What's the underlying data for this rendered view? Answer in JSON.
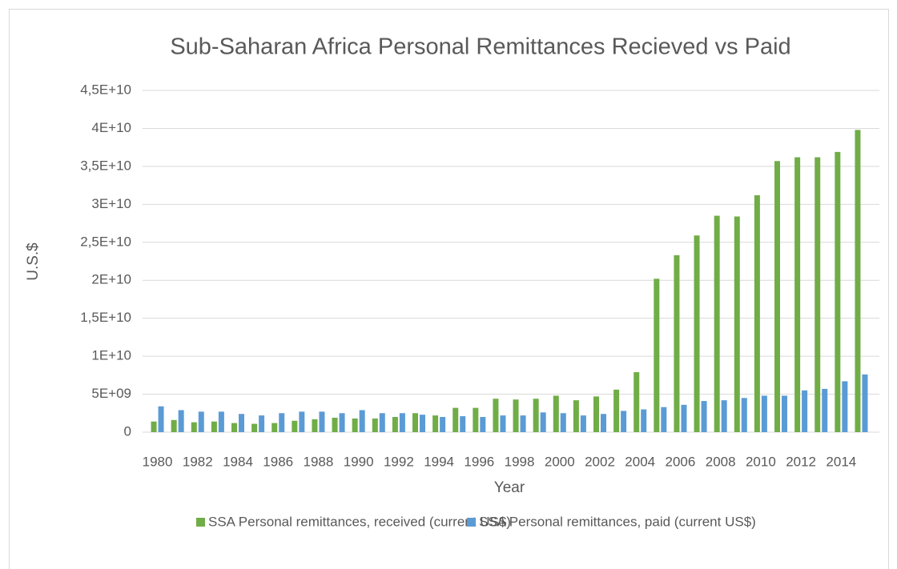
{
  "chart_data": {
    "type": "bar",
    "title": "Sub-Saharan Africa Personal Remittances Recieved vs Paid",
    "x_label": "Year",
    "y_label": "U.S.$",
    "categories": [
      "1980",
      null,
      "1982",
      null,
      "1984",
      null,
      "1986",
      null,
      "1988",
      null,
      "1990",
      null,
      "1992",
      null,
      "1994",
      null,
      "1996",
      null,
      "1998",
      null,
      "2000",
      null,
      "2002",
      null,
      "2004",
      null,
      "2006",
      null,
      "2008",
      null,
      "2010",
      null,
      "2012",
      null,
      "2014",
      null
    ],
    "series": [
      {
        "name": "SSA Personal remittances, received (current US$)",
        "color": "#70ad47",
        "values": [
          1400000000.0,
          1600000000.0,
          1300000000.0,
          1400000000.0,
          1200000000.0,
          1100000000.0,
          1200000000.0,
          1500000000.0,
          1700000000.0,
          1900000000.0,
          1800000000.0,
          1800000000.0,
          2000000000.0,
          2500000000.0,
          2200000000.0,
          3200000000.0,
          3200000000.0,
          4400000000.0,
          4300000000.0,
          4400000000.0,
          4800000000.0,
          4200000000.0,
          4700000000.0,
          5600000000.0,
          7900000000.0,
          20200000000.0,
          23300000000.0,
          25900000000.0,
          28500000000.0,
          28400000000.0,
          31200000000.0,
          35700000000.0,
          36200000000.0,
          36200000000.0,
          36900000000.0,
          39800000000.0
        ]
      },
      {
        "name": "SSA Personal remittances, paid (current US$)",
        "color": "#5b9bd5",
        "values": [
          3400000000.0,
          2900000000.0,
          2700000000.0,
          2700000000.0,
          2400000000.0,
          2200000000.0,
          2500000000.0,
          2700000000.0,
          2700000000.0,
          2500000000.0,
          2900000000.0,
          2500000000.0,
          2500000000.0,
          2300000000.0,
          2000000000.0,
          2100000000.0,
          2000000000.0,
          2200000000.0,
          2200000000.0,
          2600000000.0,
          2500000000.0,
          2200000000.0,
          2400000000.0,
          2800000000.0,
          3000000000.0,
          3300000000.0,
          3600000000.0,
          4100000000.0,
          4200000000.0,
          4500000000.0,
          4800000000.0,
          4800000000.0,
          5500000000.0,
          5700000000.0,
          6700000000.0,
          7600000000.0
        ]
      }
    ],
    "ylim": [
      0,
      45000000000.0
    ],
    "yticks": [
      0,
      {
        "value": 5000000000.0,
        "label": "5E+09"
      },
      {
        "value": 10000000000.0,
        "label": "1E+10"
      },
      {
        "value": 15000000000.0,
        "label": "1,5E+10"
      },
      {
        "value": 20000000000.0,
        "label": "2E+10"
      },
      {
        "value": 25000000000.0,
        "label": "2,5E+10"
      },
      {
        "value": 30000000000.0,
        "label": "3E+10"
      },
      {
        "value": 35000000000.0,
        "label": "3,5E+10"
      },
      {
        "value": 40000000000.0,
        "label": "4E+10"
      },
      {
        "value": 45000000000.0,
        "label": "4,5E+10"
      }
    ],
    "grid": true,
    "legend": "bottom"
  }
}
